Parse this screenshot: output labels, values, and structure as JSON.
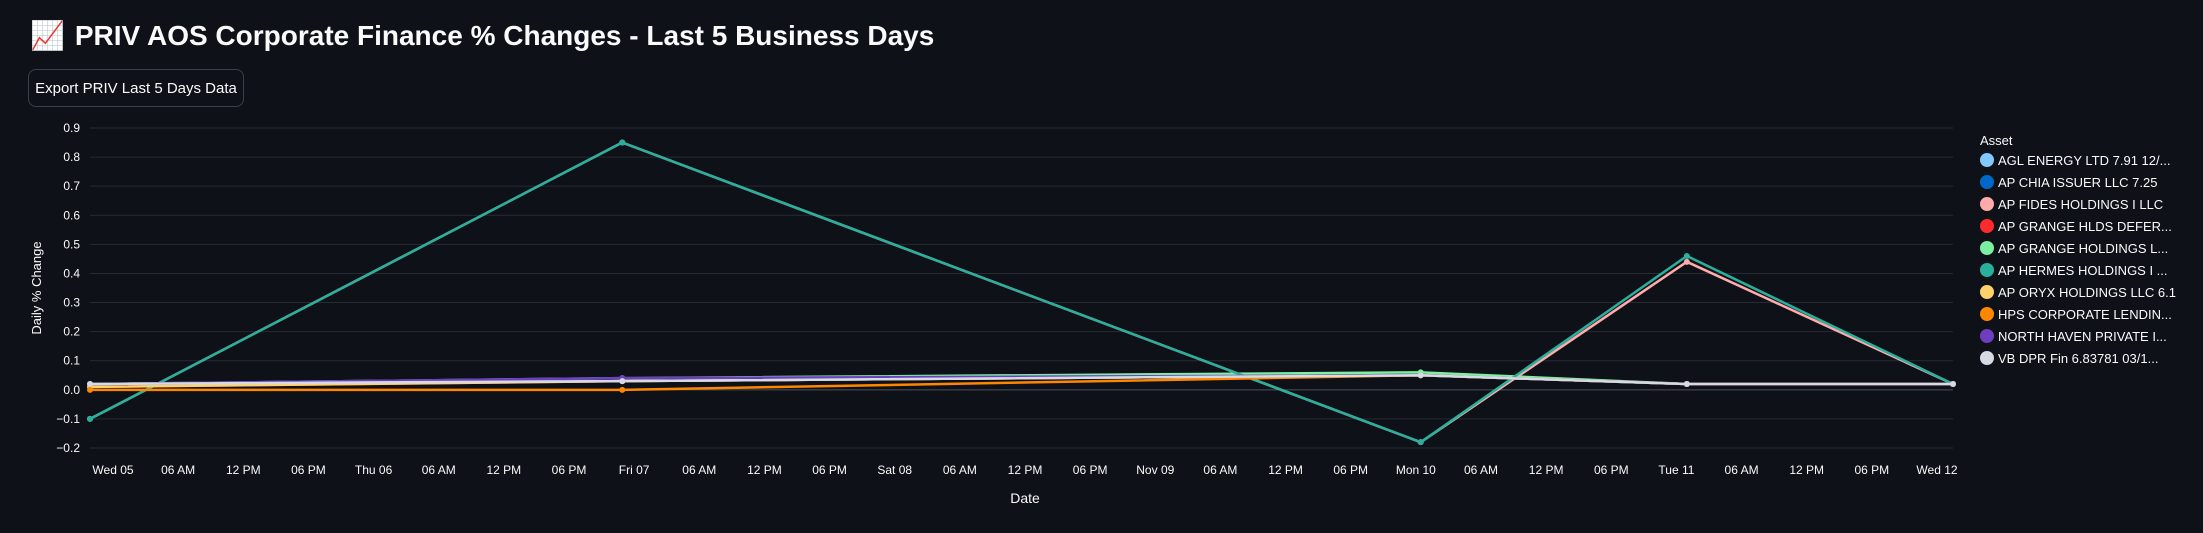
{
  "page": {
    "title": "PRIV AOS Corporate Finance % Changes - Last 5 Business Days",
    "title_icon": "📈",
    "export_label": "Export PRIV Last 5 Days Data"
  },
  "chart_data": {
    "type": "line",
    "xlabel": "Date",
    "ylabel": "Daily % Change",
    "ylim": [
      -0.2,
      0.9
    ],
    "yticks": [
      "0.9",
      "0.8",
      "0.7",
      "0.6",
      "0.5",
      "0.4",
      "0.3",
      "0.2",
      "0.1",
      "0.0",
      "−0.1",
      "−0.2"
    ],
    "ytick_values": [
      0.9,
      0.8,
      0.7,
      0.6,
      0.5,
      0.4,
      0.3,
      0.2,
      0.1,
      0.0,
      -0.1,
      -0.2
    ],
    "xticks": [
      "Wed 05",
      "06 AM",
      "12 PM",
      "06 PM",
      "Thu 06",
      "06 AM",
      "12 PM",
      "06 PM",
      "Fri 07",
      "06 AM",
      "12 PM",
      "06 PM",
      "Sat 08",
      "06 AM",
      "12 PM",
      "06 PM",
      "Nov 09",
      "06 AM",
      "12 PM",
      "06 PM",
      "Mon 10",
      "06 AM",
      "12 PM",
      "06 PM",
      "Tue 11",
      "06 AM",
      "12 PM",
      "06 PM",
      "Wed 12"
    ],
    "x": [
      "2025-11-05",
      "2025-11-07",
      "2025-11-10",
      "2025-11-11",
      "2025-11-12"
    ],
    "legend_title": "Asset",
    "legend_position": "right",
    "grid": true,
    "series": [
      {
        "name": "AGL ENERGY LTD 7.91 12/...",
        "color": "#83c9ff",
        "values": [
          0.02,
          0.03,
          0.05,
          0.02,
          0.02
        ]
      },
      {
        "name": "AP CHIA ISSUER LLC 7.25",
        "color": "#0068c9",
        "values": [
          0.02,
          0.03,
          0.05,
          0.02,
          0.02
        ]
      },
      {
        "name": "AP FIDES HOLDINGS I LLC",
        "color": "#ffabab",
        "values": [
          -0.1,
          0.85,
          -0.18,
          0.44,
          0.02
        ]
      },
      {
        "name": "AP GRANGE HLDS DEFER...",
        "color": "#ff2b2b",
        "values": [
          0.01,
          0.03,
          0.05,
          0.02,
          0.02
        ]
      },
      {
        "name": "AP GRANGE HOLDINGS L...",
        "color": "#7defa1",
        "values": [
          0.02,
          0.04,
          0.06,
          0.02,
          0.02
        ]
      },
      {
        "name": "AP HERMES HOLDINGS I ...",
        "color": "#29b09d",
        "values": [
          -0.1,
          0.85,
          -0.18,
          0.46,
          0.02
        ]
      },
      {
        "name": "AP ORYX HOLDINGS LLC 6.1",
        "color": "#ffd16a",
        "values": [
          0.01,
          0.03,
          0.05,
          0.02,
          0.02
        ]
      },
      {
        "name": "HPS CORPORATE LENDIN...",
        "color": "#ff8700",
        "values": [
          0.0,
          0.0,
          0.05,
          0.02,
          0.02
        ]
      },
      {
        "name": "NORTH HAVEN PRIVATE I...",
        "color": "#6d3fc0",
        "values": [
          0.02,
          0.04,
          0.05,
          0.02,
          0.02
        ]
      },
      {
        "name": "VB DPR Fin 6.83781 03/1...",
        "color": "#d5dae5",
        "values": [
          0.02,
          0.03,
          0.05,
          0.02,
          0.02
        ]
      }
    ]
  }
}
